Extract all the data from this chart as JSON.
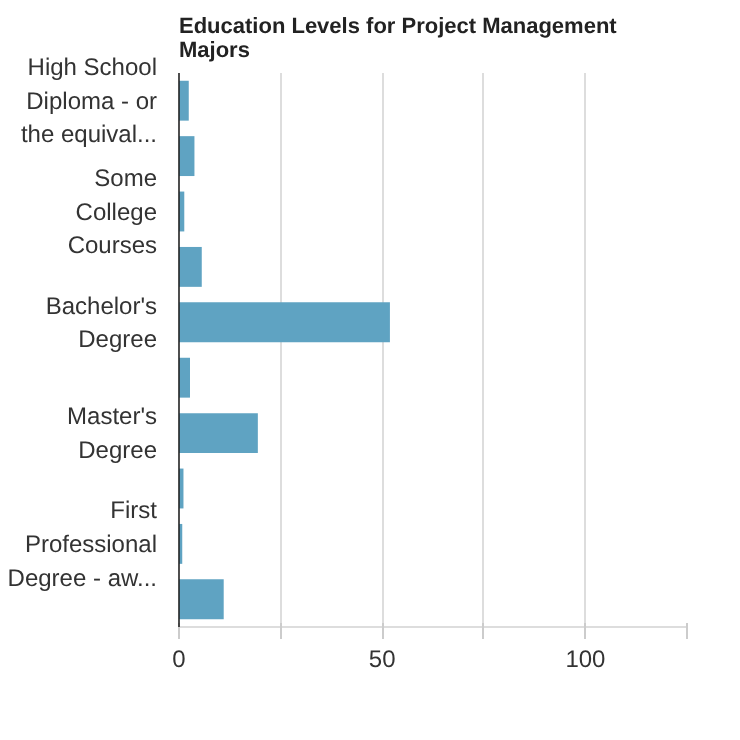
{
  "chart_data": {
    "type": "bar",
    "orientation": "horizontal",
    "title": "Education Levels for Project Management\nMajors",
    "categories": [
      "High School\nDiploma - or\nthe equival...",
      null,
      "Some\nCollege\nCourses",
      null,
      "Bachelor's\nDegree",
      null,
      "Master's\nDegree",
      null,
      "First\nProfessional\nDegree - aw...",
      null
    ],
    "values": [
      2.4,
      3.8,
      1.3,
      5.6,
      51.9,
      2.7,
      19.4,
      1.1,
      0.8,
      11.0
    ],
    "color": "#5fa3c2",
    "xlim": [
      0,
      125
    ],
    "xticks": [
      0,
      {
        "value": 25,
        "label": null
      },
      50,
      {
        "value": 75,
        "label": null
      },
      100,
      {
        "value": 125,
        "label": null
      }
    ],
    "grid": "x"
  }
}
